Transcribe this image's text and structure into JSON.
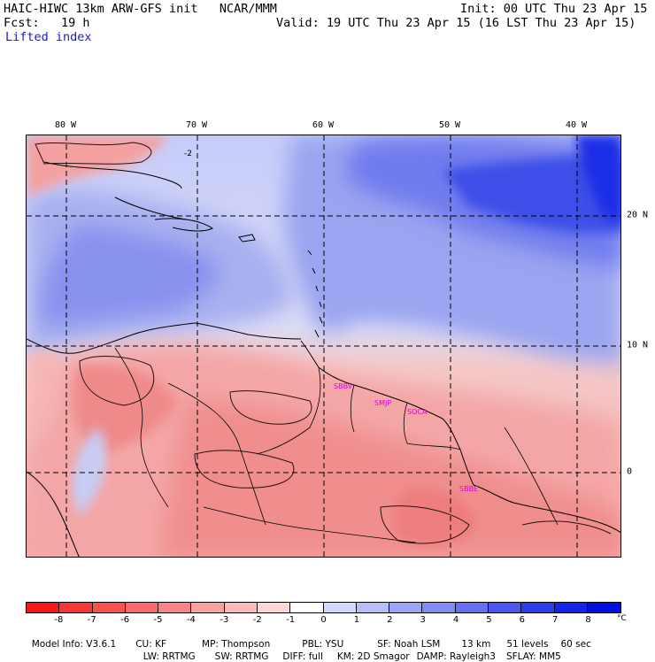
{
  "header": {
    "model_title": "HAIC-HIWC 13km ARW-GFS init   NCAR/MMM",
    "forecast": "Fcst:   19 h",
    "init_time": "Init: 00 UTC Thu 23 Apr 15",
    "valid_time": "Valid: 19 UTC Thu 23 Apr 15 (16 LST Thu 23 Apr 15)",
    "field_name": "Lifted index"
  },
  "map": {
    "lon_labels": [
      "80 W",
      "70 W",
      "60 W",
      "50 W",
      "40 W"
    ],
    "lat_labels": [
      "20 N",
      "10 N",
      "0"
    ],
    "stations": [
      "SBBV",
      "SMJP",
      "SOCA",
      "SBBE"
    ],
    "contour_label": "-2",
    "colors": {
      "positive_max": "#0010e8",
      "neutral": "#ffffff",
      "negative_max": "#f02020"
    }
  },
  "colorbar": {
    "tick_labels": [
      "-8",
      "-7",
      "-6",
      "-5",
      "-4",
      "-3",
      "-2",
      "-1",
      "0",
      "1",
      "2",
      "3",
      "4",
      "5",
      "6",
      "7",
      "8"
    ],
    "unit": "°C",
    "colors": [
      "#f81818",
      "#fa3535",
      "#fb5050",
      "#fb6a6a",
      "#fb8585",
      "#fca0a0",
      "#fdbaba",
      "#fed6d6",
      "#ffffff",
      "#d4d8ff",
      "#b8befa",
      "#9ca5f8",
      "#818bf5",
      "#6571f2",
      "#4a58ef",
      "#2e3eeb",
      "#1225e8",
      "#0010e0"
    ]
  },
  "footer": {
    "line1": [
      "Model Info: V3.6.1",
      "CU: KF",
      "MP: Thompson",
      "PBL: YSU",
      "SF: Noah LSM",
      "13 km",
      "51 levels",
      "60 sec"
    ],
    "line2": [
      "LW: RRTMG",
      "SW: RRTMG",
      "DIFF: full",
      "KM: 2D Smagor",
      "DAMP: Rayleigh3",
      "SFLAY: MM5"
    ]
  }
}
